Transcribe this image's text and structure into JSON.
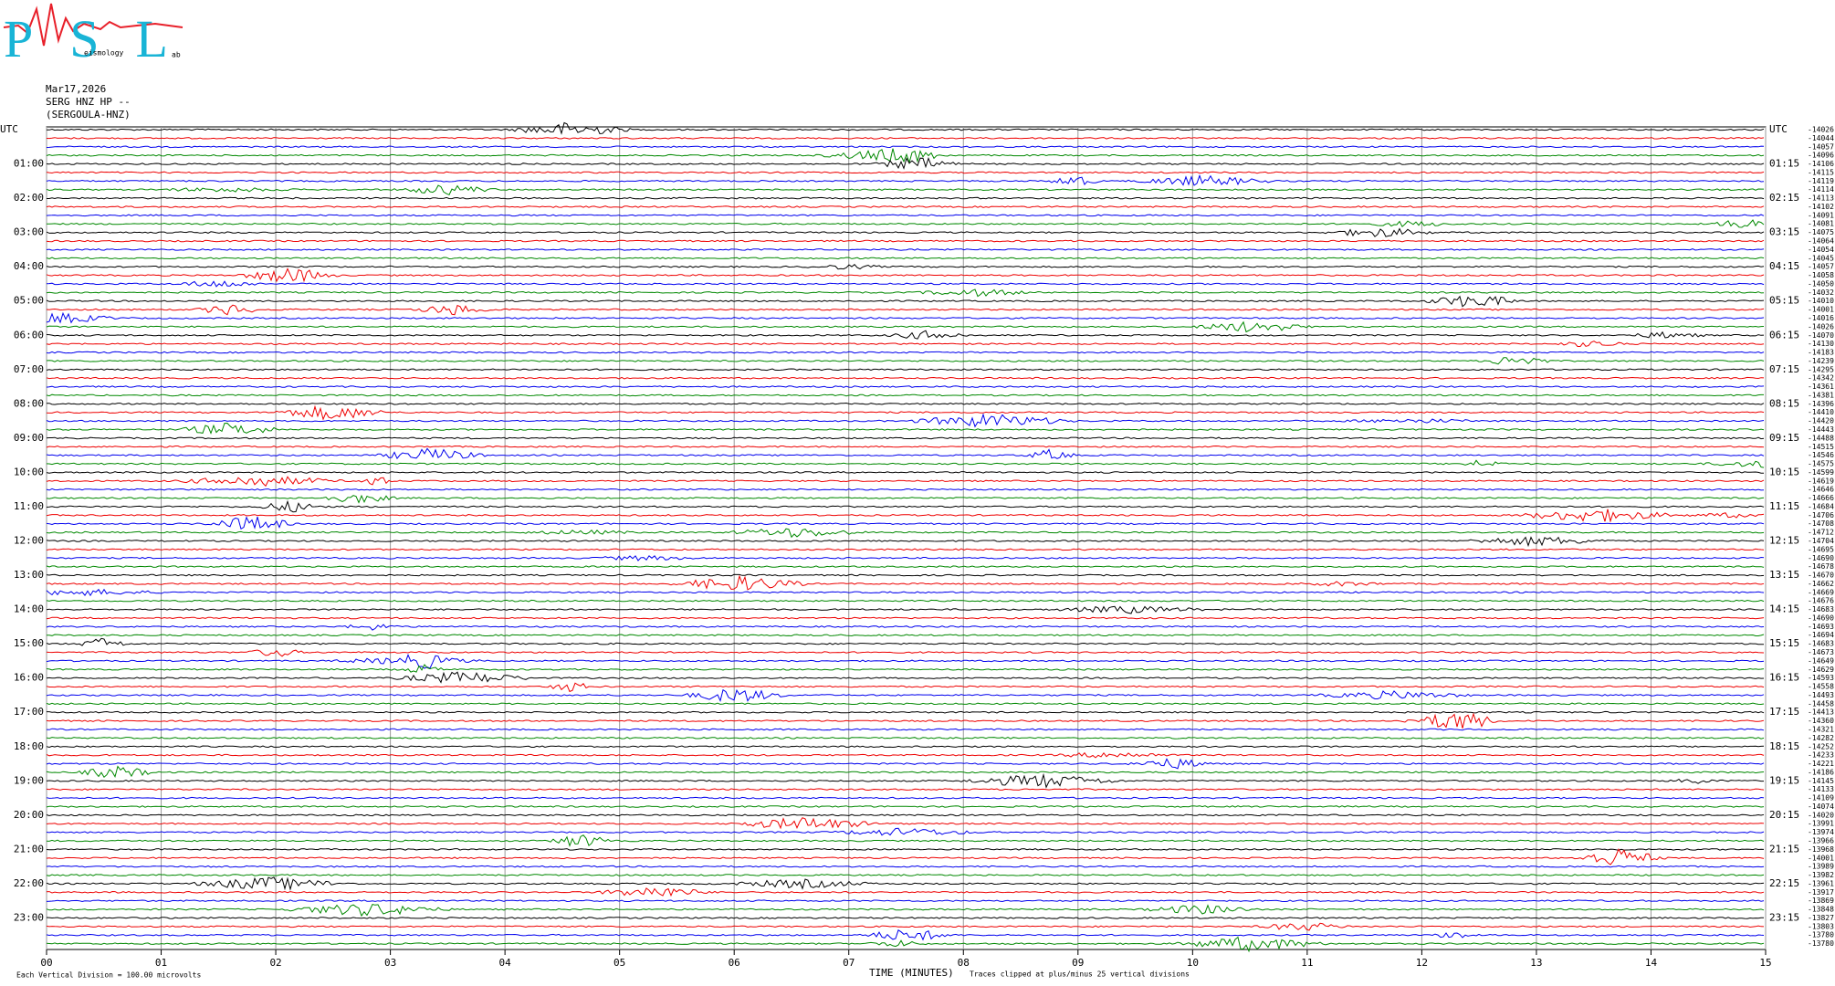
{
  "logo": {
    "title": "PSL",
    "subtitle": "eismology",
    "tail": "ab"
  },
  "header": {
    "date": "Mar17,2026",
    "station": "SERG HNZ HP --",
    "name": "(SERGOULA-HNZ)"
  },
  "left_labels": [
    "UTC",
    "01:00",
    "02:00",
    "03:00",
    "04:00",
    "05:00",
    "06:00",
    "07:00",
    "08:00",
    "09:00",
    "10:00",
    "11:00",
    "12:00",
    "13:00",
    "14:00",
    "15:00",
    "16:00",
    "17:00",
    "18:00",
    "19:00",
    "20:00",
    "21:00",
    "22:00",
    "23:00"
  ],
  "right_labels": [
    "UTC",
    "01:15",
    "02:15",
    "03:15",
    "04:15",
    "05:15",
    "06:15",
    "07:15",
    "08:15",
    "09:15",
    "10:15",
    "11:15",
    "12:15",
    "13:15",
    "14:15",
    "15:15",
    "16:15",
    "17:15",
    "18:15",
    "19:15",
    "20:15",
    "21:15",
    "22:15",
    "23:15"
  ],
  "offsets": [
    "-14026",
    "-14044",
    "-14057",
    "-14096",
    "-14106",
    "-14115",
    "-14119",
    "-14114",
    "-14113",
    "-14102",
    "-14091",
    "-14081",
    "-14075",
    "-14064",
    "-14054",
    "-14045",
    "-14057",
    "-14058",
    "-14050",
    "-14032",
    "-14010",
    "-14001",
    "-14016",
    "-14026",
    "-14070",
    "-14130",
    "-14183",
    "-14239",
    "-14295",
    "-14342",
    "-14361",
    "-14381",
    "-14396",
    "-14410",
    "-14420",
    "-14443",
    "-14488",
    "-14515",
    "-14546",
    "-14575",
    "-14599",
    "-14619",
    "-14646",
    "-14666",
    "-14684",
    "-14706",
    "-14708",
    "-14712",
    "-14704",
    "-14695",
    "-14690",
    "-14678",
    "-14670",
    "-14662",
    "-14669",
    "-14676",
    "-14683",
    "-14690",
    "-14693",
    "-14694",
    "-14683",
    "-14673",
    "-14649",
    "-14629",
    "-14593",
    "-14558",
    "-14493",
    "-14458",
    "-14413",
    "-14360",
    "-14321",
    "-14282",
    "-14252",
    "-14233",
    "-14221",
    "-14186",
    "-14145",
    "-14133",
    "-14109",
    "-14074",
    "-14020",
    "-13991",
    "-13974",
    "-13966",
    "-13968",
    "-14001",
    "-13989",
    "-13982",
    "-13961",
    "-13917",
    "-13869",
    "-13848",
    "-13827",
    "-13803",
    "-13780",
    "-13780"
  ],
  "x_ticks": [
    "00",
    "01",
    "02",
    "03",
    "04",
    "05",
    "06",
    "07",
    "08",
    "09",
    "10",
    "11",
    "12",
    "13",
    "14",
    "15"
  ],
  "footer": {
    "division": "Each Vertical Division =  100.00 microvolts",
    "axis_title": "TIME (MINUTES)",
    "clip_note": "Traces clipped at plus/minus 25 vertical divisions"
  }
}
